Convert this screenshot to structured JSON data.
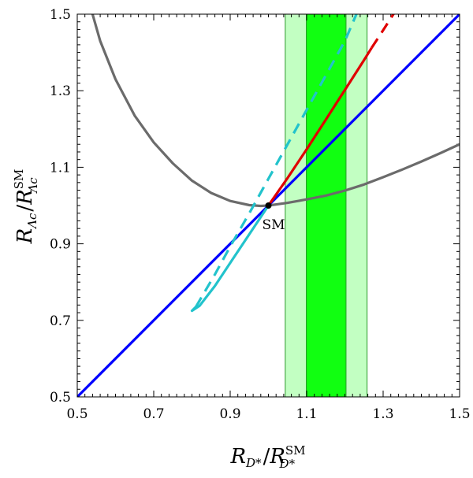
{
  "chart_data": {
    "type": "line",
    "title": "",
    "xlabel": {
      "main": "R",
      "sub": "D*",
      "sep": "/",
      "main2": "R",
      "sup2": "SM",
      "sub2": "D*"
    },
    "ylabel": {
      "main": "R",
      "sub": "Λc",
      "sep": "/",
      "main2": "R",
      "sup2": "SM",
      "sub2": "Λc"
    },
    "xlim": [
      0.5,
      1.5
    ],
    "ylim": [
      0.5,
      1.5
    ],
    "xticks": [
      0.5,
      0.7,
      0.9,
      1.1,
      1.3,
      1.5
    ],
    "xtick_labels": [
      "0.5",
      "0.7",
      "0.9",
      "1.1",
      "1.3",
      "1.5"
    ],
    "yticks": [
      0.5,
      0.7,
      0.9,
      1.1,
      1.3,
      1.5
    ],
    "ytick_labels": [
      "0.5",
      "0.7",
      "0.9",
      "1.1",
      "1.3",
      "1.5"
    ],
    "bands": [
      {
        "name": "outer band",
        "x0": 1.044,
        "x1": 1.258,
        "color": "#c2ffc2"
      },
      {
        "name": "inner band",
        "x0": 1.099,
        "x1": 1.203,
        "color": "#11ff11"
      }
    ],
    "sm_point": {
      "x": 1.0,
      "y": 1.0,
      "label": "SM"
    },
    "series": [
      {
        "name": "gray curve",
        "color": "#6b6b6b",
        "style": "solid",
        "x": [
          0.54,
          0.56,
          0.6,
          0.65,
          0.7,
          0.75,
          0.8,
          0.85,
          0.9,
          0.95,
          0.98,
          1.0,
          1.05,
          1.1,
          1.15,
          1.2,
          1.25,
          1.3,
          1.35,
          1.4,
          1.45,
          1.5
        ],
        "y": [
          1.5,
          1.43,
          1.33,
          1.235,
          1.165,
          1.11,
          1.065,
          1.033,
          1.012,
          1.001,
          0.999,
          1.0,
          1.007,
          1.016,
          1.026,
          1.039,
          1.055,
          1.074,
          1.094,
          1.115,
          1.137,
          1.16
        ]
      },
      {
        "name": "blue line",
        "color": "#0000ff",
        "style": "solid",
        "x": [
          0.5,
          1.5
        ],
        "y": [
          0.5,
          1.5
        ]
      },
      {
        "name": "cyan solid",
        "color": "#22c3cc",
        "style": "solid",
        "x": [
          0.81,
          0.8,
          0.82,
          0.86,
          0.9,
          0.95,
          1.0
        ],
        "y": [
          0.735,
          0.725,
          0.738,
          0.79,
          0.85,
          0.925,
          1.0
        ]
      },
      {
        "name": "cyan dashed",
        "color": "#22c3cc",
        "style": "dashed",
        "x": [
          0.81,
          0.86,
          0.9,
          0.95,
          1.0,
          1.05,
          1.1,
          1.15,
          1.2,
          1.23
        ],
        "y": [
          0.735,
          0.82,
          0.893,
          0.98,
          1.07,
          1.16,
          1.25,
          1.34,
          1.43,
          1.5
        ]
      },
      {
        "name": "red solid",
        "color": "#e00000",
        "style": "solid",
        "x": [
          1.0,
          1.05,
          1.1,
          1.15,
          1.2,
          1.25,
          1.27
        ],
        "y": [
          1.0,
          1.072,
          1.147,
          1.224,
          1.302,
          1.38,
          1.412
        ]
      },
      {
        "name": "red dashed",
        "color": "#e00000",
        "style": "dashed",
        "x": [
          1.27,
          1.3,
          1.33
        ],
        "y": [
          1.412,
          1.458,
          1.505
        ]
      }
    ]
  }
}
